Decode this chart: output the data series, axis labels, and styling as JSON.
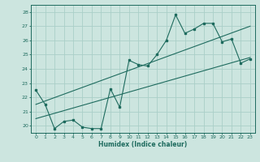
{
  "title": "",
  "xlabel": "Humidex (Indice chaleur)",
  "xlim": [
    -0.5,
    23.5
  ],
  "ylim": [
    19.5,
    28.5
  ],
  "yticks": [
    20,
    21,
    22,
    23,
    24,
    25,
    26,
    27,
    28
  ],
  "xticks": [
    0,
    1,
    2,
    3,
    4,
    5,
    6,
    7,
    8,
    9,
    10,
    11,
    12,
    13,
    14,
    15,
    16,
    17,
    18,
    19,
    20,
    21,
    22,
    23
  ],
  "bg_color": "#cce5df",
  "grid_color": "#aacfc8",
  "line_color": "#1e6b5e",
  "series1_x": [
    0,
    1,
    2,
    3,
    4,
    5,
    6,
    7,
    8,
    9,
    10,
    11,
    12,
    13,
    14,
    15,
    16,
    17,
    18,
    19,
    20,
    21,
    22,
    23
  ],
  "series1_y": [
    22.5,
    21.5,
    19.8,
    20.3,
    20.4,
    19.9,
    19.8,
    19.8,
    22.6,
    21.3,
    24.6,
    24.3,
    24.2,
    25.0,
    26.0,
    27.8,
    26.5,
    26.8,
    27.2,
    27.2,
    25.9,
    26.1,
    24.4,
    24.7
  ],
  "trend1_x": [
    0,
    23
  ],
  "trend1_y": [
    20.5,
    24.8
  ],
  "trend2_x": [
    0,
    23
  ],
  "trend2_y": [
    21.5,
    27.0
  ]
}
